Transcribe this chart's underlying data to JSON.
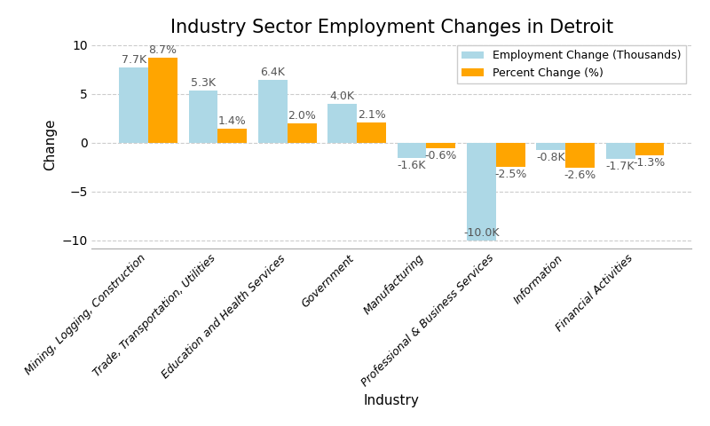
{
  "title": "Industry Sector Employment Changes in Detroit",
  "xlabel": "Industry",
  "ylabel": "Change",
  "categories": [
    "Mining, Logging, Construction",
    "Trade, Transportation, Utilities",
    "Education and Health Services",
    "Government",
    "Manufacturing",
    "Professional & Business Services",
    "Information",
    "Financial Activities"
  ],
  "employment_change": [
    7.7,
    5.3,
    6.4,
    4.0,
    -1.6,
    -10.0,
    -0.8,
    -1.7
  ],
  "percent_change": [
    8.7,
    1.4,
    2.0,
    2.1,
    -0.6,
    -2.5,
    -2.6,
    -1.3
  ],
  "employment_labels": [
    "7.7K",
    "5.3K",
    "6.4K",
    "4.0K",
    "-1.6K",
    "-10.0K",
    "-0.8K",
    "-1.7K"
  ],
  "percent_labels": [
    "8.7%",
    "1.4%",
    "2.0%",
    "2.1%",
    "-0.6%",
    "-2.5%",
    "-2.6%",
    "-1.3%"
  ],
  "bar_color_employment": "#ADD8E6",
  "bar_color_percent": "#FFA500",
  "background_color": "#ffffff",
  "grid_color": "#cccccc",
  "ylim": [
    -10.8,
    10.5
  ],
  "legend_labels": [
    "Employment Change (Thousands)",
    "Percent Change (%)"
  ],
  "bar_width": 0.42,
  "title_fontsize": 15,
  "label_fontsize": 11,
  "tick_fontsize": 9,
  "annotation_fontsize": 9
}
